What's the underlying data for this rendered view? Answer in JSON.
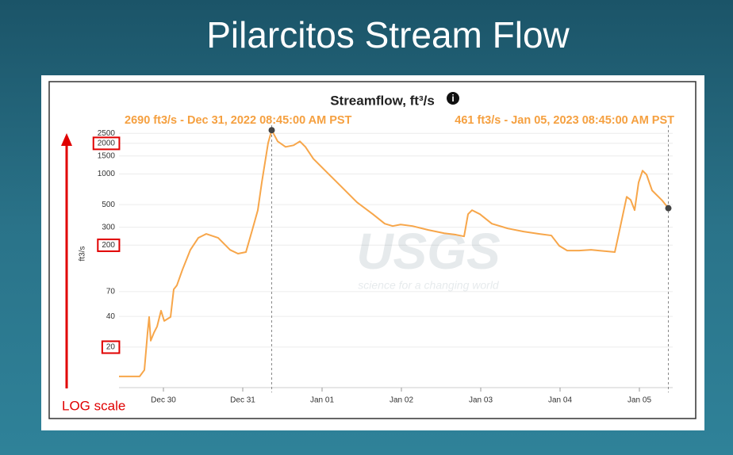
{
  "slide": {
    "title": "Pilarcitos Stream Flow",
    "note": "LOG scale"
  },
  "chart_data": {
    "type": "line",
    "title": "Streamflow, ft³/s",
    "y_label": "ft3/s",
    "watermark": {
      "logo": "USGS",
      "tagline": "science for a changing world"
    },
    "annotations": [
      {
        "text": "2690 ft3/s - Dec 31, 2022 08:45:00 AM PST",
        "x": 1.365,
        "y": 2690
      },
      {
        "text": "461 ft3/s - Jan 05, 2023 08:45:00 AM PST",
        "x": 6.365,
        "y": 461
      }
    ],
    "x": [
      -0.56,
      -0.3,
      -0.24,
      -0.2,
      -0.18,
      -0.16,
      -0.12,
      -0.08,
      -0.03,
      0.01,
      0.09,
      0.13,
      0.17,
      0.24,
      0.34,
      0.44,
      0.54,
      0.69,
      0.84,
      0.94,
      1.04,
      1.12,
      1.19,
      1.24,
      1.32,
      1.365,
      1.44,
      1.54,
      1.64,
      1.72,
      1.79,
      1.89,
      2.04,
      2.24,
      2.44,
      2.64,
      2.79,
      2.89,
      2.99,
      3.14,
      3.34,
      3.54,
      3.69,
      3.79,
      3.84,
      3.89,
      3.99,
      4.14,
      4.34,
      4.54,
      4.74,
      4.89,
      4.99,
      5.09,
      5.24,
      5.39,
      5.49,
      5.69,
      5.74,
      5.84,
      5.89,
      5.94,
      5.99,
      6.04,
      6.09,
      6.16,
      6.29,
      6.365
    ],
    "series": [
      {
        "name": "Streamflow",
        "color": "#f7a64a",
        "values": [
          10.3,
          10.3,
          11.9,
          27.6,
          39.5,
          23.1,
          27.6,
          31.8,
          45.5,
          36.1,
          39.5,
          73.8,
          80.7,
          115,
          180,
          236,
          258,
          236,
          180,
          165,
          171,
          282,
          441,
          824,
          2014,
          2690,
          2088,
          1843,
          1910,
          2088,
          1843,
          1409,
          1077,
          754,
          527,
          403,
          325,
          308,
          319,
          308,
          282,
          262,
          253,
          244,
          403,
          441,
          403,
          325,
          292,
          272,
          258,
          249,
          197,
          177,
          177,
          180,
          177,
          171,
          258,
          597,
          556,
          441,
          824,
          1077,
          986,
          689,
          546,
          461
        ]
      }
    ],
    "xlim": [
      -0.56,
      6.42
    ],
    "xticks": [
      {
        "value": 0,
        "label": "Dec 30"
      },
      {
        "value": 1,
        "label": "Dec 31"
      },
      {
        "value": 2,
        "label": "Jan 01"
      },
      {
        "value": 3,
        "label": "Jan 02"
      },
      {
        "value": 4,
        "label": "Jan 03"
      },
      {
        "value": 5,
        "label": "Jan 04"
      },
      {
        "value": 6,
        "label": "Jan 05"
      }
    ],
    "ylim": [
      8,
      2900
    ],
    "yticks": [
      20,
      40,
      70,
      200,
      300,
      500,
      1000,
      1500,
      2000,
      2500
    ],
    "y_log": true,
    "grid": true,
    "annotation_color": "#f5a040"
  }
}
